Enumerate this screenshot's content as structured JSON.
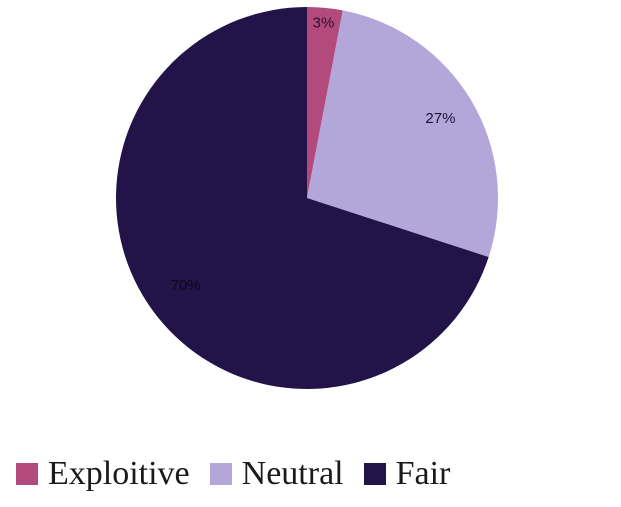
{
  "chart_data": {
    "type": "pie",
    "categories": [
      "Exploitive",
      "Neutral",
      "Fair"
    ],
    "values": [
      3,
      27,
      70
    ],
    "labels": [
      "3%",
      "27%",
      "70%"
    ],
    "colors": [
      "#b34a7c",
      "#b3a7da",
      "#221449"
    ],
    "label_colors": [
      "#2a0f2a",
      "#1a1436",
      "#0a0720"
    ],
    "start_angle_deg": 0,
    "direction": "clockwise",
    "legend_position": "bottom"
  },
  "legend": {
    "items": [
      {
        "label": "Exploitive",
        "color": "#b34a7c"
      },
      {
        "label": "Neutral",
        "color": "#b3a7da"
      },
      {
        "label": "Fair",
        "color": "#221449"
      }
    ]
  }
}
